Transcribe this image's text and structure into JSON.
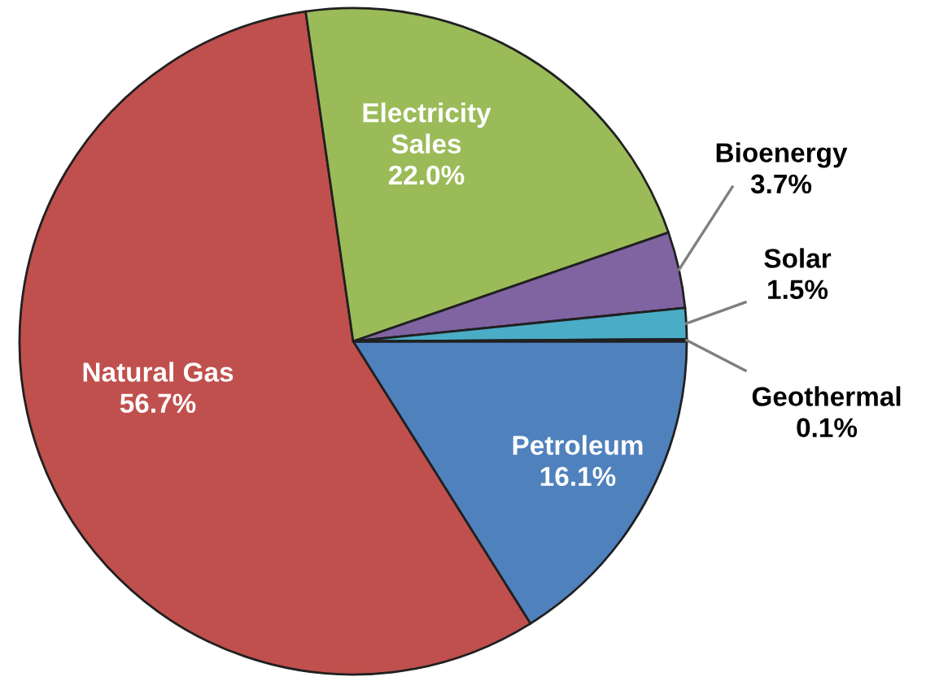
{
  "chart_data": {
    "type": "pie",
    "categories": [
      "Petroleum",
      "Natural Gas",
      "Electricity Sales",
      "Bioenergy",
      "Solar",
      "Geothermal"
    ],
    "values": [
      16.1,
      56.7,
      22.0,
      3.7,
      1.5,
      0.1
    ],
    "value_labels": [
      "16.1%",
      "56.7%",
      "22.0%",
      "3.7%",
      "1.5%",
      "0.1%"
    ],
    "colors": [
      "#4f81bd",
      "#c0504d",
      "#9bbb59",
      "#8064a2",
      "#4bacc6",
      "#f79646"
    ],
    "legend": false
  }
}
